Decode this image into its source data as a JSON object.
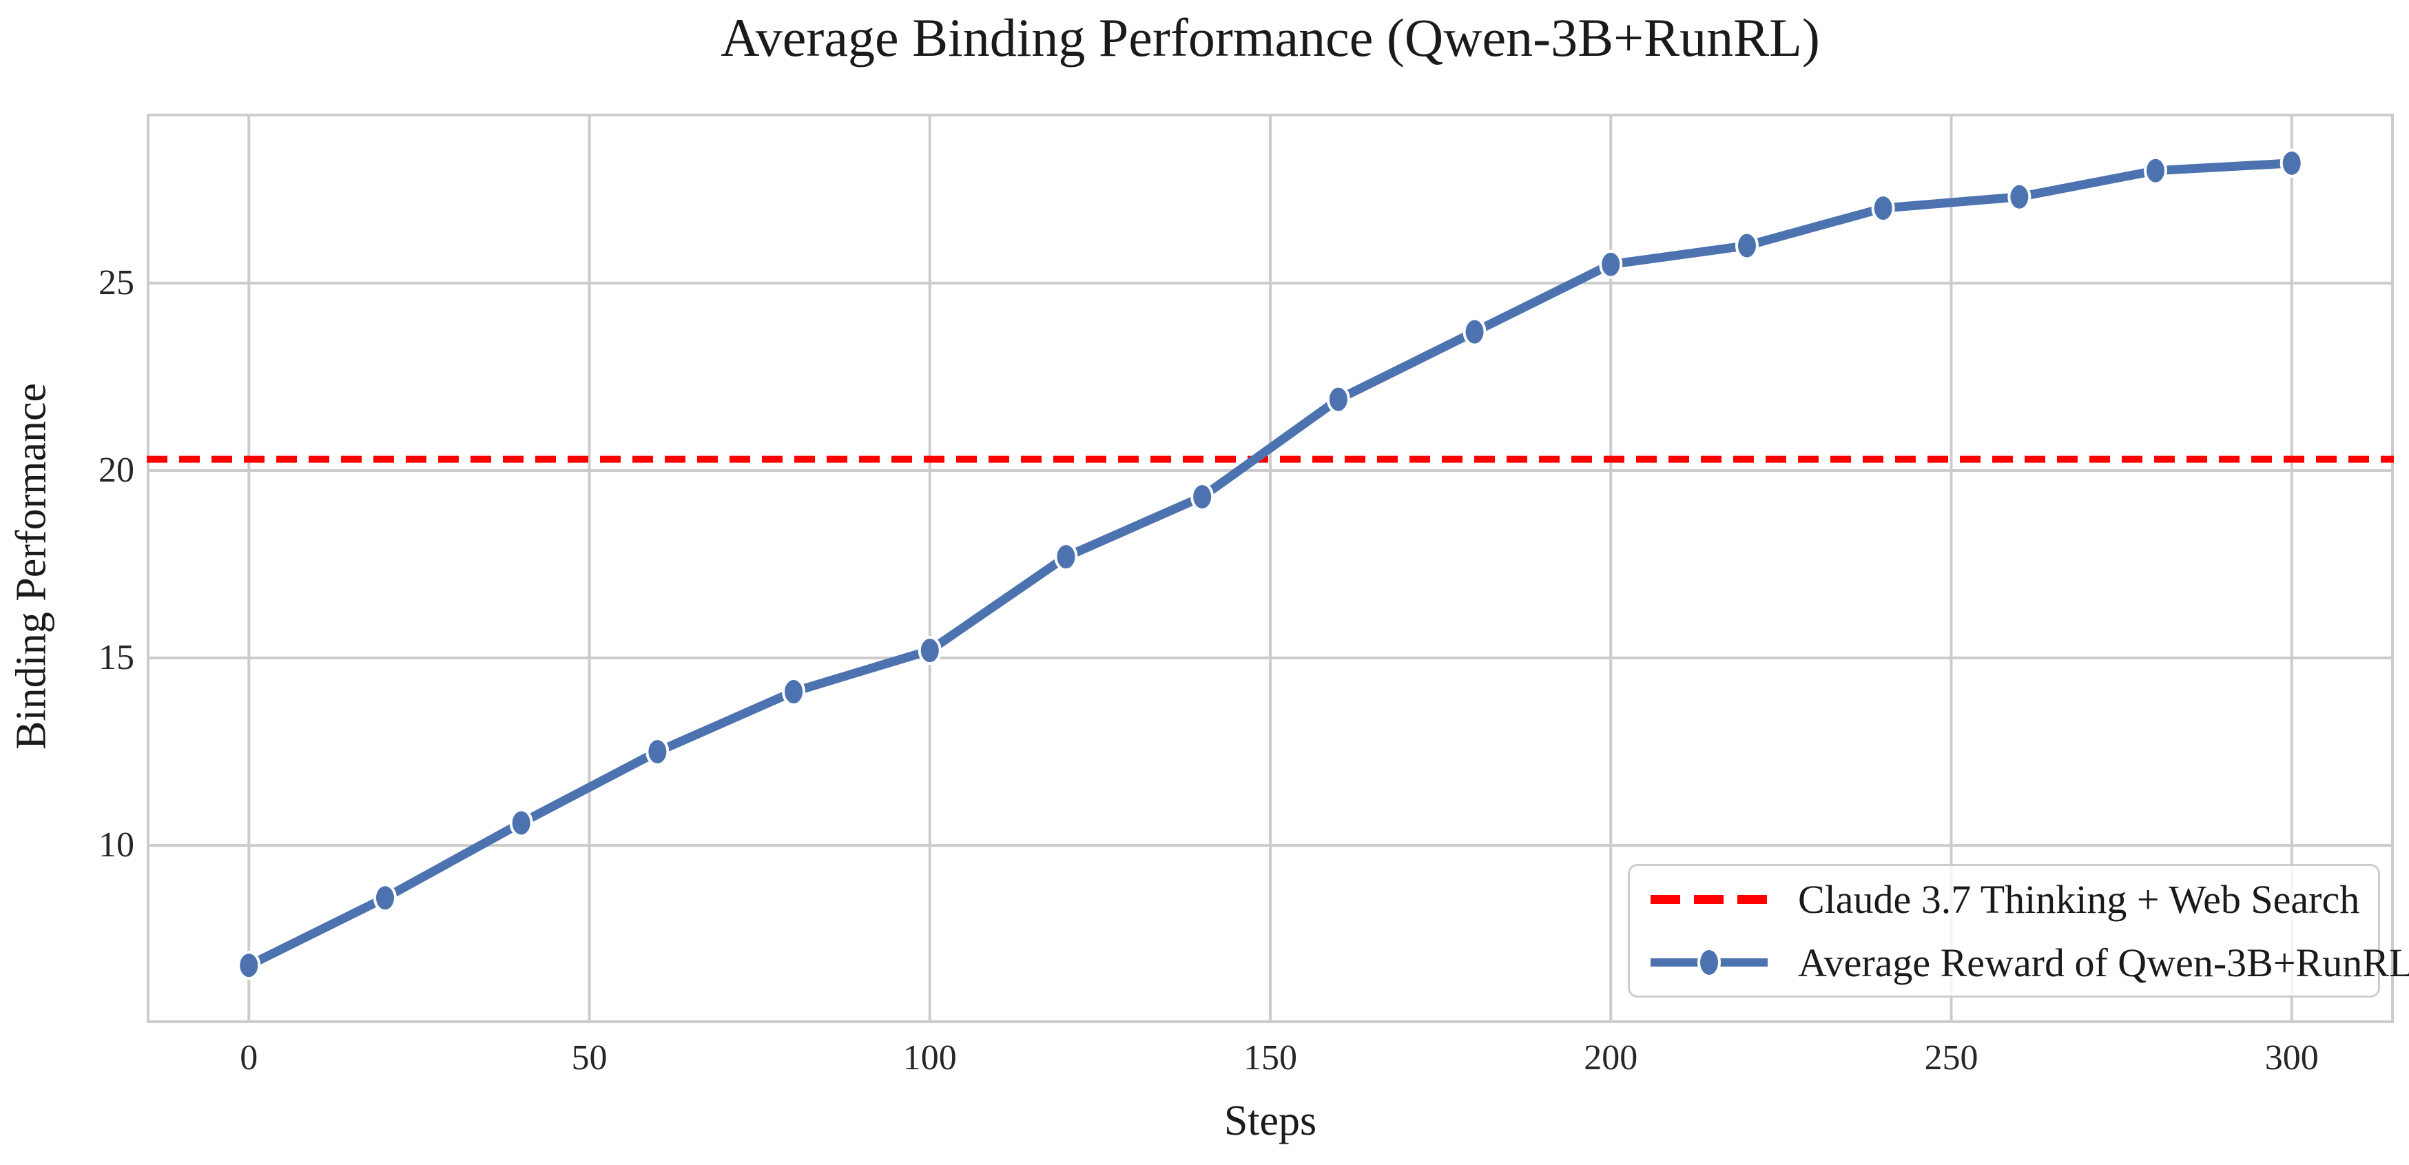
{
  "chart_data": {
    "type": "line",
    "title": "Average Binding Performance (Qwen-3B+RunRL)",
    "xlabel": "Steps",
    "ylabel": "Binding Performance",
    "xlim": [
      -15,
      315
    ],
    "ylim": [
      5.26,
      29.52
    ],
    "xticks": [
      0,
      50,
      100,
      150,
      200,
      250,
      300
    ],
    "yticks": [
      10,
      15,
      20,
      25
    ],
    "grid": true,
    "legend_position": "lower right",
    "x": [
      0,
      20,
      40,
      60,
      80,
      100,
      120,
      140,
      160,
      180,
      200,
      220,
      240,
      260,
      280,
      300
    ],
    "series": [
      {
        "name": "Claude 3.7 Thinking + Web Search",
        "type": "hline",
        "value": 20.3,
        "color": "#ff0000",
        "linestyle": "dashed"
      },
      {
        "name": "Average Reward of Qwen-3B+RunRL",
        "type": "line",
        "marker": "circle",
        "color": "#4c72b0",
        "values": [
          6.8,
          8.6,
          10.6,
          12.5,
          14.1,
          15.2,
          17.7,
          19.3,
          21.9,
          23.7,
          25.5,
          26.0,
          27.0,
          27.3,
          28.0,
          28.2
        ]
      }
    ],
    "colors": {
      "grid": "#cccccc",
      "axis_border": "#cccccc",
      "tick_text": "#262626",
      "title_text": "#1a1a1a",
      "background": "#ffffff"
    }
  }
}
